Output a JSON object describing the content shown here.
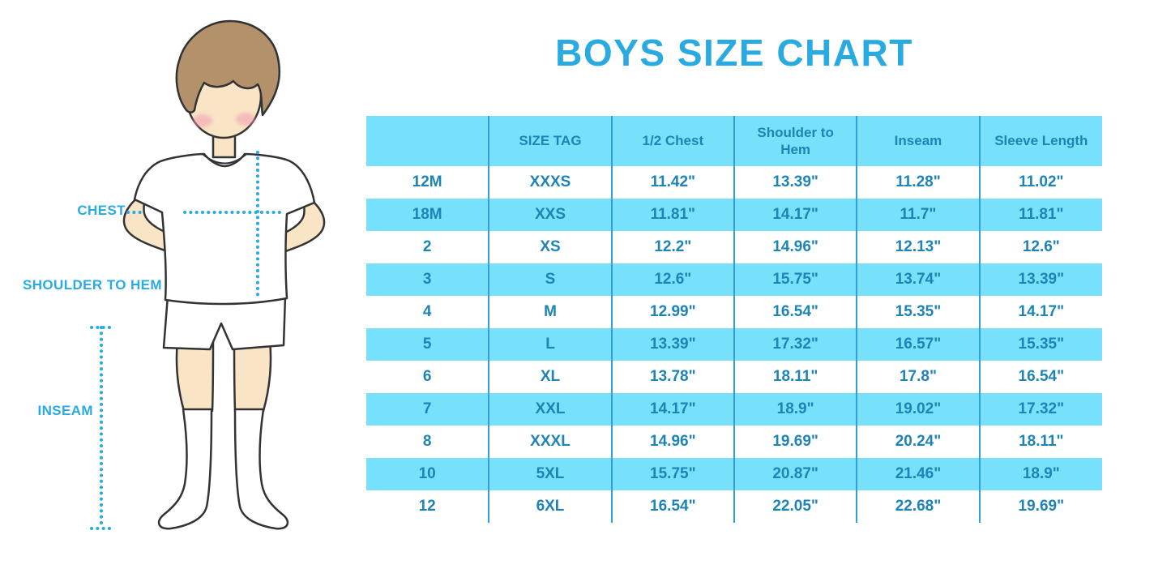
{
  "title": "BOYS SIZE CHART",
  "figure_labels": {
    "chest": "CHEST",
    "shoulder_to_hem": "SHOULDER TO HEM",
    "inseam": "INSEAM"
  },
  "colors": {
    "accent": "#29ABE2",
    "table_fill": "#77E0FA",
    "table_line": "#2F9FD6",
    "table_text": "#1E84B5",
    "skin": "#F9E4C6",
    "hair": "#B3916B",
    "cheek": "#F1A3B2",
    "outline": "#333333"
  },
  "chart_data": {
    "type": "table",
    "title": "BOYS SIZE CHART",
    "units": "inches",
    "columns": [
      "",
      "SIZE TAG",
      "1/2 Chest",
      "Shoulder to Hem",
      "Inseam",
      "Sleeve Length"
    ],
    "rows": [
      [
        "12M",
        "XXXS",
        "11.42\"",
        "13.39\"",
        "11.28\"",
        "11.02\""
      ],
      [
        "18M",
        "XXS",
        "11.81\"",
        "14.17\"",
        "11.7\"",
        "11.81\""
      ],
      [
        "2",
        "XS",
        "12.2\"",
        "14.96\"",
        "12.13\"",
        "12.6\""
      ],
      [
        "3",
        "S",
        "12.6\"",
        "15.75\"",
        "13.74\"",
        "13.39\""
      ],
      [
        "4",
        "M",
        "12.99\"",
        "16.54\"",
        "15.35\"",
        "14.17\""
      ],
      [
        "5",
        "L",
        "13.39\"",
        "17.32\"",
        "16.57\"",
        "15.35\""
      ],
      [
        "6",
        "XL",
        "13.78\"",
        "18.11\"",
        "17.8\"",
        "16.54\""
      ],
      [
        "7",
        "XXL",
        "14.17\"",
        "18.9\"",
        "19.02\"",
        "17.32\""
      ],
      [
        "8",
        "XXXL",
        "14.96\"",
        "19.69\"",
        "20.24\"",
        "18.11\""
      ],
      [
        "10",
        "5XL",
        "15.75\"",
        "20.87\"",
        "21.46\"",
        "18.9\""
      ],
      [
        "12",
        "6XL",
        "16.54\"",
        "22.05\"",
        "22.68\"",
        "19.69\""
      ]
    ],
    "layout": {
      "alternating_row_fill": "light-blue starting with header and every second body row",
      "column_dividers": "vertical only, no horizontal or outer borders"
    }
  }
}
